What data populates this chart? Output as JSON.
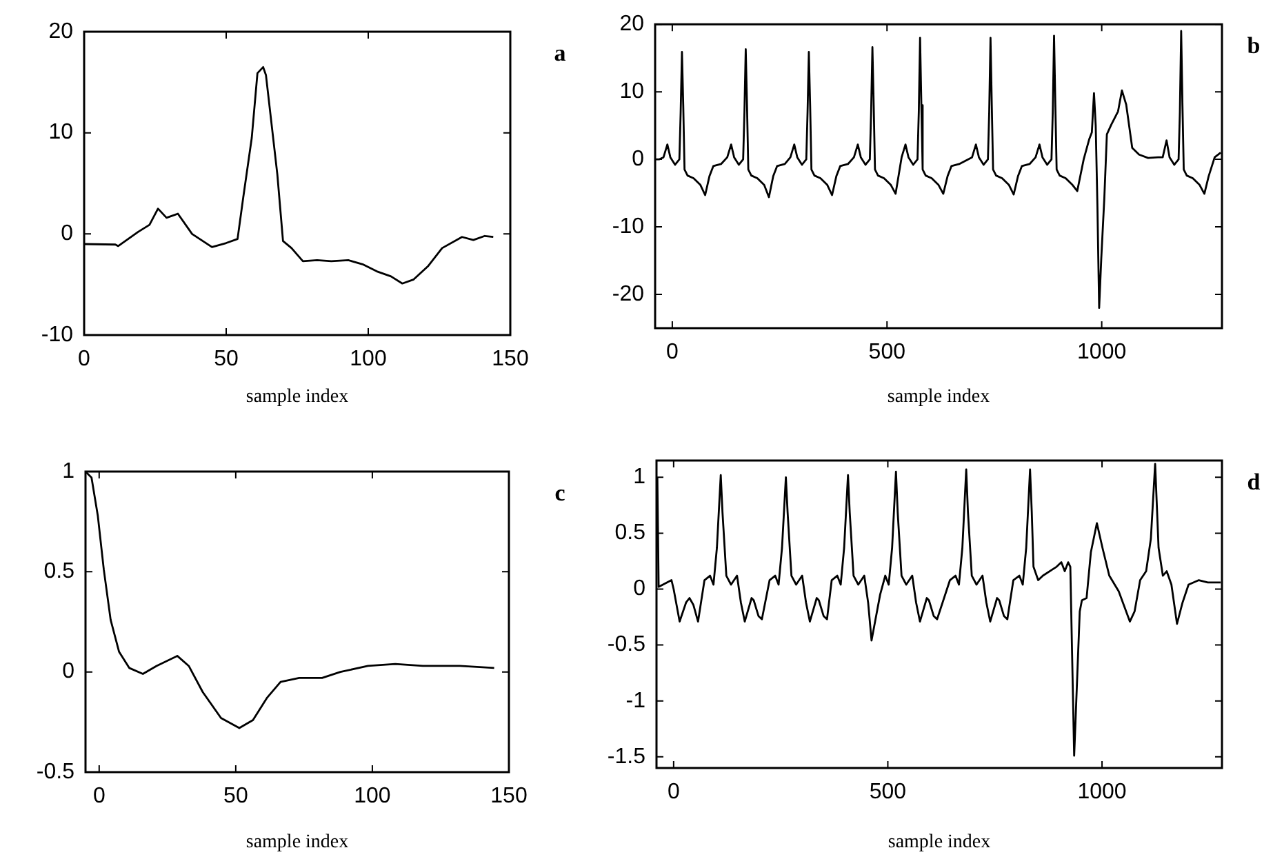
{
  "chart_data": [
    {
      "type": "line",
      "xlabel": "sample index",
      "annotations": [
        "a"
      ],
      "color": "#000000",
      "grid": false,
      "xlim": [
        0,
        150
      ],
      "ylim": [
        -10,
        20
      ],
      "xticks": [
        0,
        50,
        100,
        150
      ],
      "yticks": [
        -10,
        0,
        10,
        20
      ],
      "x": [
        0,
        11,
        12,
        19,
        23,
        26,
        29,
        33,
        38,
        45,
        50,
        54,
        56,
        59,
        61,
        63,
        64,
        68,
        70,
        73,
        77,
        82,
        87,
        93,
        98,
        103,
        108,
        112,
        116,
        121,
        126,
        133,
        137,
        141,
        144
      ],
      "values": [
        -1,
        -1.05,
        -1.2,
        0.2,
        0.9,
        2.5,
        1.6,
        2.0,
        0,
        -1.3,
        -0.9,
        -0.5,
        3.6,
        9.5,
        15.9,
        16.5,
        15.7,
        5.9,
        -0.7,
        -1.4,
        -2.7,
        -2.6,
        -2.7,
        -2.6,
        -3.0,
        -3.7,
        -4.2,
        -4.9,
        -4.5,
        -3.2,
        -1.4,
        -0.3,
        -0.6,
        -0.2,
        -0.3
      ]
    },
    {
      "type": "line",
      "xlabel": "sample index",
      "annotations": [
        "b"
      ],
      "color": "#000000",
      "grid": false,
      "xlim": [
        -40,
        1280
      ],
      "ylim": [
        -25,
        20
      ],
      "xticks": [
        0,
        500,
        1000
      ],
      "yticks": [
        -20,
        -10,
        0,
        10,
        20
      ],
      "x": [
        -40,
        -30,
        -20.5,
        -11.5,
        -4.5,
        6.5,
        16.5,
        19.5,
        22.5,
        25.5,
        28.5,
        35.5,
        49.5,
        65.5,
        76.5,
        86.5,
        95.5,
        113.5,
        128,
        137,
        144,
        155,
        165,
        168,
        171,
        174,
        177,
        184,
        198,
        214,
        225,
        235,
        244,
        262,
        275,
        284,
        291,
        302,
        312,
        315,
        318,
        321,
        324,
        331,
        345,
        361,
        372,
        382,
        391,
        409,
        423,
        432,
        439,
        450,
        460,
        463,
        466,
        469,
        472,
        479,
        493,
        509,
        520,
        534,
        543,
        550,
        561,
        571,
        574,
        577,
        580,
        583,
        590,
        604,
        620,
        631,
        641,
        650,
        668,
        698,
        707,
        714,
        725,
        735,
        738,
        741,
        744,
        747,
        754,
        768,
        784,
        795,
        805,
        814,
        832,
        846,
        855,
        862,
        873,
        883,
        886,
        889,
        892,
        895,
        902,
        916,
        932,
        943,
        958,
        971,
        977,
        982,
        986,
        990,
        994,
        999,
        1006,
        1012,
        1022,
        1038,
        1047,
        1057,
        1071,
        1087,
        1108,
        1131,
        1142,
        1151,
        1158,
        1169,
        1179,
        1182,
        1185,
        1188,
        1191,
        1198,
        1212,
        1228,
        1239,
        1249,
        1263,
        1277
      ],
      "values": [
        0,
        0,
        0.3,
        2.2,
        0.3,
        -0.8,
        0,
        7,
        15.9,
        8,
        -1.5,
        -2.4,
        -2.8,
        -3.8,
        -5.3,
        -2.5,
        -1,
        -0.7,
        0.3,
        2.2,
        0.3,
        -0.8,
        0,
        7,
        16.3,
        8,
        -1.5,
        -2.4,
        -2.8,
        -3.8,
        -5.6,
        -2.5,
        -1,
        -0.7,
        0.3,
        2.2,
        0.3,
        -0.8,
        0,
        7,
        15.9,
        8,
        -1.5,
        -2.4,
        -2.8,
        -3.8,
        -5.3,
        -2.5,
        -1,
        -0.7,
        0.3,
        2.2,
        0.3,
        -0.8,
        0,
        7,
        16.6,
        8,
        -1.5,
        -2.4,
        -2.8,
        -3.8,
        -5.1,
        0.3,
        2.2,
        0.3,
        -0.8,
        0,
        7,
        18,
        8,
        -1.5,
        -2.4,
        -2.8,
        -3.8,
        -5.1,
        -2.5,
        -1,
        -0.7,
        0.3,
        2.2,
        0.3,
        -0.8,
        0,
        7,
        18,
        8,
        -1.5,
        -2.4,
        -2.8,
        -3.8,
        -5.2,
        -2.5,
        -1,
        -0.7,
        0.3,
        2.2,
        0.3,
        -0.8,
        0,
        7,
        18.3,
        8,
        -1.5,
        -2.4,
        -2.8,
        -3.8,
        -4.7,
        0,
        3,
        4,
        9.8,
        5,
        -7,
        -22,
        -14.6,
        -5.8,
        3.7,
        5.1,
        7.1,
        10.2,
        8.1,
        1.7,
        0.7,
        0.2,
        0.3,
        0.3,
        2.8,
        0.3,
        -0.8,
        0,
        7,
        19,
        8,
        -1.5,
        -2.4,
        -2.8,
        -3.8,
        -5.1,
        -2.5,
        0.3,
        1
      ]
    },
    {
      "type": "line",
      "xlabel": "sample index",
      "annotations": [
        "c"
      ],
      "color": "#000000",
      "grid": false,
      "xlim": [
        -5,
        150
      ],
      "ylim": [
        -0.5,
        1
      ],
      "xticks": [
        0,
        50,
        100,
        150
      ],
      "yticks": [
        -0.5,
        0,
        0.5,
        1
      ],
      "x": [
        -5,
        -2.8,
        -0.5,
        1.7,
        4.2,
        7.3,
        11,
        16,
        21,
        28.6,
        32.8,
        37.9,
        44.6,
        51.3,
        56.3,
        61.4,
        66.4,
        73.2,
        81.6,
        88.3,
        98.4,
        108.4,
        118.5,
        132,
        144.6
      ],
      "values": [
        1.0,
        0.97,
        0.78,
        0.51,
        0.26,
        0.1,
        0.02,
        -0.01,
        0.03,
        0.08,
        0.03,
        -0.1,
        -0.23,
        -0.28,
        -0.24,
        -0.13,
        -0.05,
        -0.03,
        -0.03,
        0,
        0.03,
        0.04,
        0.03,
        0.03,
        0.02
      ]
    },
    {
      "type": "line",
      "xlabel": "sample index",
      "annotations": [
        "d"
      ],
      "color": "#000000",
      "grid": false,
      "xlim": [
        -40,
        1280
      ],
      "ylim": [
        -1.6,
        1.15
      ],
      "xticks": [
        0,
        500,
        1000
      ],
      "yticks": [
        -1.5,
        -1,
        -0.5,
        0,
        0.5,
        1
      ],
      "x": [
        -38,
        -35,
        -5,
        0,
        14,
        29,
        37,
        46,
        57,
        72,
        85,
        93,
        101,
        110,
        114,
        123,
        134,
        148,
        157,
        166,
        182,
        187,
        198,
        206,
        224,
        237,
        245,
        253,
        262,
        266,
        275,
        286,
        300,
        309,
        318,
        334,
        339,
        350,
        358,
        369,
        382,
        390,
        398,
        407,
        411,
        420,
        431,
        445,
        454,
        462,
        482,
        494,
        502,
        510,
        519,
        523,
        532,
        543,
        557,
        566,
        575,
        591,
        596,
        607,
        615,
        645,
        658,
        666,
        674,
        683,
        687,
        696,
        707,
        721,
        730,
        739,
        755,
        760,
        771,
        779,
        793,
        807,
        815,
        823,
        832,
        836,
        840,
        851,
        862,
        894,
        905,
        913,
        921,
        926,
        935,
        948,
        953,
        964,
        974,
        988,
        1001,
        1017,
        1039,
        1065,
        1076,
        1089,
        1103,
        1114,
        1124,
        1132,
        1142,
        1151,
        1162,
        1175,
        1188,
        1202,
        1226,
        1247,
        1277
      ],
      "values": [
        1.0,
        0.02,
        0.08,
        0,
        -0.29,
        -0.12,
        -0.08,
        -0.14,
        -0.29,
        0.08,
        0.12,
        0.04,
        0.37,
        1.02,
        0.69,
        0.12,
        0.04,
        0.12,
        -0.12,
        -0.29,
        -0.08,
        -0.1,
        -0.24,
        -0.27,
        0.08,
        0.12,
        0.04,
        0.37,
        1.0,
        0.69,
        0.12,
        0.04,
        0.12,
        -0.12,
        -0.29,
        -0.08,
        -0.1,
        -0.24,
        -0.27,
        0.08,
        0.12,
        0.04,
        0.37,
        1.02,
        0.69,
        0.12,
        0.04,
        0.12,
        -0.12,
        -0.46,
        -0.05,
        0.12,
        0.04,
        0.37,
        1.05,
        0.69,
        0.12,
        0.04,
        0.12,
        -0.12,
        -0.29,
        -0.08,
        -0.1,
        -0.24,
        -0.27,
        0.08,
        0.12,
        0.04,
        0.37,
        1.07,
        0.69,
        0.12,
        0.04,
        0.12,
        -0.12,
        -0.29,
        -0.08,
        -0.1,
        -0.24,
        -0.27,
        0.08,
        0.12,
        0.04,
        0.37,
        1.07,
        0.69,
        0.2,
        0.08,
        0.12,
        0.2,
        0.24,
        0.16,
        0.24,
        0.2,
        -1.49,
        -0.2,
        -0.1,
        -0.08,
        0.33,
        0.59,
        0.37,
        0.12,
        -0.02,
        -0.29,
        -0.2,
        0.08,
        0.16,
        0.45,
        1.12,
        0.37,
        0.12,
        0.16,
        0.04,
        -0.31,
        -0.12,
        0.04,
        0.08,
        0.06,
        0.06
      ]
    }
  ]
}
